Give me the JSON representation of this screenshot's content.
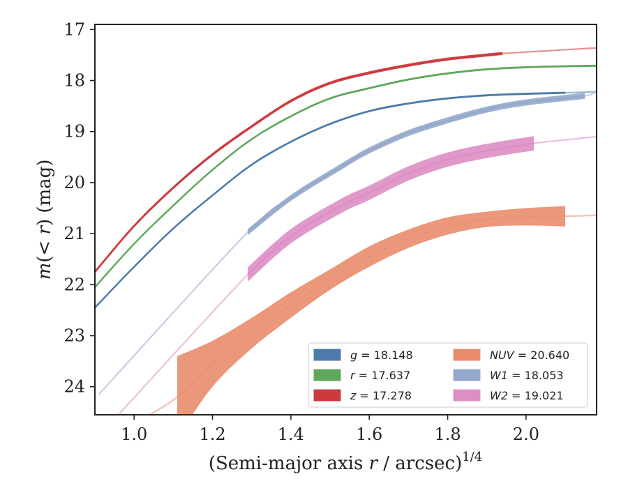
{
  "chart_data": {
    "type": "line",
    "xlabel": "(Semi-major axis r / arcsec)^1/4",
    "xlabel_parts": {
      "pre": "(Semi-major axis ",
      "italic": "r",
      "mid": " / arcsec)",
      "sup": "1/4"
    },
    "ylabel": "m(<r) (mag)",
    "ylabel_parts": {
      "m": "m",
      "lt": "(< ",
      "r": "r",
      "end": ") (mag)"
    },
    "xlim": [
      0.9,
      2.18
    ],
    "ylim": [
      24.55,
      16.9
    ],
    "y_inverted": true,
    "xticks": [
      1.0,
      1.2,
      1.4,
      1.6,
      1.8,
      2.0
    ],
    "xtick_labels": [
      "1.0",
      "1.2",
      "1.4",
      "1.6",
      "1.8",
      "2.0"
    ],
    "yticks": [
      17,
      18,
      19,
      20,
      21,
      22,
      23,
      24
    ],
    "ytick_labels": [
      "17",
      "18",
      "19",
      "20",
      "21",
      "22",
      "23",
      "24"
    ],
    "legend_position": "lower-right",
    "legend": [
      {
        "italic": "g",
        "text": " = 18.148",
        "color": "#4c7bab",
        "series": "g"
      },
      {
        "italic": "r",
        "text": " = 17.637",
        "color": "#5ea85e",
        "series": "r"
      },
      {
        "italic": "z",
        "text": " = 17.278",
        "color": "#cc3a3e",
        "series": "z"
      },
      {
        "italic": "NUV",
        "text": " = 20.640",
        "color": "#e98c6b",
        "series": "NUV"
      },
      {
        "italic": "W1",
        "text": " = 18.053",
        "color": "#94a8cb",
        "series": "W1"
      },
      {
        "italic": "W2",
        "text": " = 19.021",
        "color": "#dd8ec4",
        "series": "W2"
      }
    ],
    "series": [
      {
        "name": "g",
        "color": "#4c7bab",
        "x": [
          0.9,
          1.0,
          1.1,
          1.2,
          1.3,
          1.4,
          1.5,
          1.6,
          1.7,
          1.8,
          1.9,
          2.0,
          2.1
        ],
        "y": [
          22.45,
          21.65,
          20.9,
          20.25,
          19.65,
          19.2,
          18.85,
          18.6,
          18.45,
          18.35,
          18.29,
          18.26,
          18.24
        ],
        "err": 0.02,
        "solid_until": 2.1,
        "extrap_to": 2.18,
        "extrap_y": 18.22
      },
      {
        "name": "r",
        "color": "#5ea85e",
        "x": [
          0.9,
          1.0,
          1.1,
          1.2,
          1.3,
          1.4,
          1.5,
          1.6,
          1.7,
          1.8,
          1.9,
          2.0,
          2.1,
          2.18
        ],
        "y": [
          22.05,
          21.2,
          20.45,
          19.75,
          19.15,
          18.7,
          18.35,
          18.15,
          17.98,
          17.86,
          17.78,
          17.74,
          17.72,
          17.71
        ],
        "err": 0.02,
        "solid_until": 2.18,
        "extrap_to": 2.18,
        "extrap_y": 17.71
      },
      {
        "name": "z",
        "color": "#cc3a3e",
        "x": [
          0.9,
          1.0,
          1.1,
          1.2,
          1.3,
          1.4,
          1.5,
          1.6,
          1.7,
          1.8,
          1.9,
          1.94
        ],
        "y": [
          21.75,
          20.85,
          20.1,
          19.45,
          18.9,
          18.4,
          18.05,
          17.85,
          17.7,
          17.58,
          17.5,
          17.47
        ],
        "err": 0.03,
        "solid_until": 1.94,
        "extrap_to": 2.18,
        "extrap_y": 17.36
      },
      {
        "name": "NUV",
        "color": "#e98c6b",
        "x": [
          1.11,
          1.2,
          1.3,
          1.4,
          1.5,
          1.6,
          1.7,
          1.8,
          1.9,
          2.0,
          2.1
        ],
        "y": [
          24.2,
          23.55,
          22.95,
          22.4,
          21.9,
          21.45,
          21.1,
          20.85,
          20.72,
          20.67,
          20.66
        ],
        "err_upper": [
          0.8,
          0.45,
          0.3,
          0.25,
          0.2,
          0.2,
          0.18,
          0.17,
          0.15,
          0.17,
          0.2
        ],
        "err_lower": [
          0.8,
          0.45,
          0.3,
          0.25,
          0.2,
          0.2,
          0.18,
          0.17,
          0.15,
          0.17,
          0.2
        ],
        "solid_until": 2.1,
        "extrap_from": 1.04,
        "extrap_from_y": 24.55,
        "extrap_to": 2.18,
        "extrap_y": 20.64
      },
      {
        "name": "W1",
        "color": "#94a8cb",
        "x": [
          1.29,
          1.4,
          1.53,
          1.6,
          1.7,
          1.8,
          1.9,
          2.0,
          2.15
        ],
        "y": [
          20.97,
          20.3,
          19.68,
          19.37,
          19.03,
          18.78,
          18.57,
          18.43,
          18.3
        ],
        "err": 0.06,
        "solid_until": 2.15,
        "extrap_from": 0.91,
        "extrap_from_y": 24.15,
        "extrap_to": 2.18,
        "extrap_y": 18.2
      },
      {
        "name": "W2",
        "color": "#dd8ec4",
        "x": [
          1.29,
          1.4,
          1.53,
          1.6,
          1.7,
          1.8,
          1.9,
          2.02
        ],
        "y": [
          21.8,
          21.05,
          20.45,
          20.2,
          19.82,
          19.55,
          19.38,
          19.23
        ],
        "err": 0.14,
        "solid_until": 2.02,
        "extrap_from": 0.96,
        "extrap_from_y": 24.55,
        "extrap_to": 2.18,
        "extrap_y": 19.1
      }
    ]
  }
}
